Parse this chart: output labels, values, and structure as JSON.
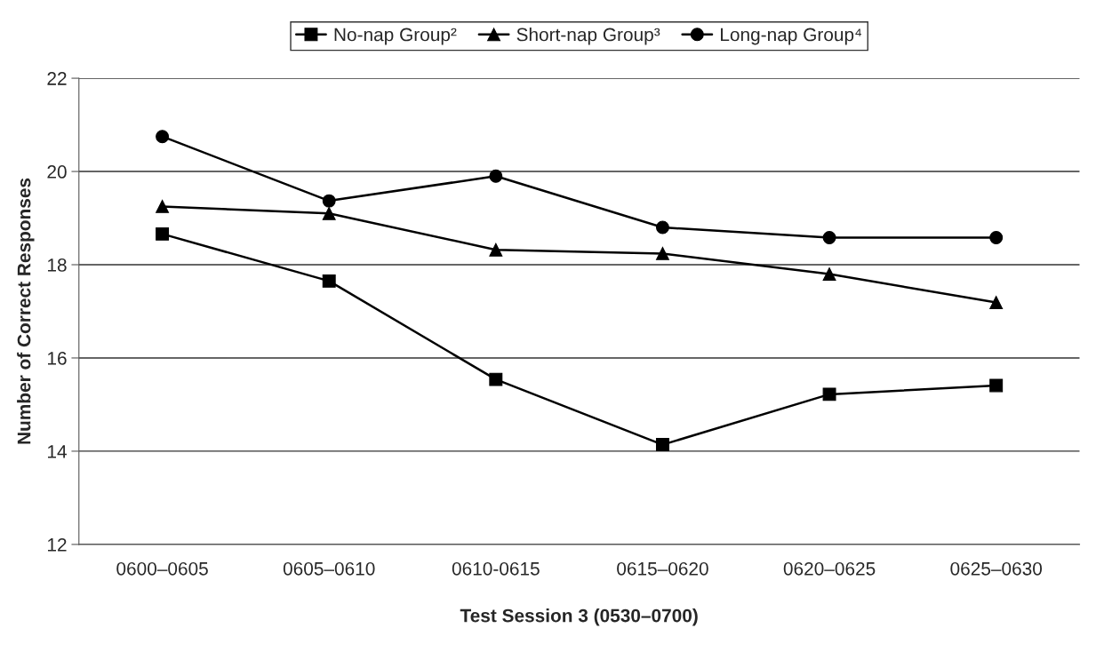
{
  "chart_data": {
    "type": "line",
    "xlabel": "Test Session 3 (0530–0700)",
    "ylabel": "Number of Correct Responses",
    "categories": [
      "0600–0605",
      "0605–0610",
      "0610-0615",
      "0615–0620",
      "0620–0625",
      "0625–0630"
    ],
    "series": [
      {
        "name": "No-nap Group²",
        "color": "#000000",
        "marker": "square",
        "values": [
          18.66,
          17.65,
          15.54,
          14.14,
          15.22,
          15.41
        ]
      },
      {
        "name": "Short-nap Group³",
        "color": "#000000",
        "marker": "triangle",
        "values": [
          19.25,
          19.1,
          18.32,
          18.24,
          17.8,
          17.19
        ]
      },
      {
        "name": "Long-nap Group⁴",
        "color": "#000000",
        "marker": "circle",
        "values": [
          20.75,
          19.37,
          19.9,
          18.8,
          18.58,
          18.58
        ]
      }
    ],
    "ylim": [
      12,
      22
    ],
    "yticks": [
      12,
      14,
      16,
      18,
      20,
      22
    ],
    "grid": "y",
    "legend": "top",
    "line_style": "solid"
  }
}
